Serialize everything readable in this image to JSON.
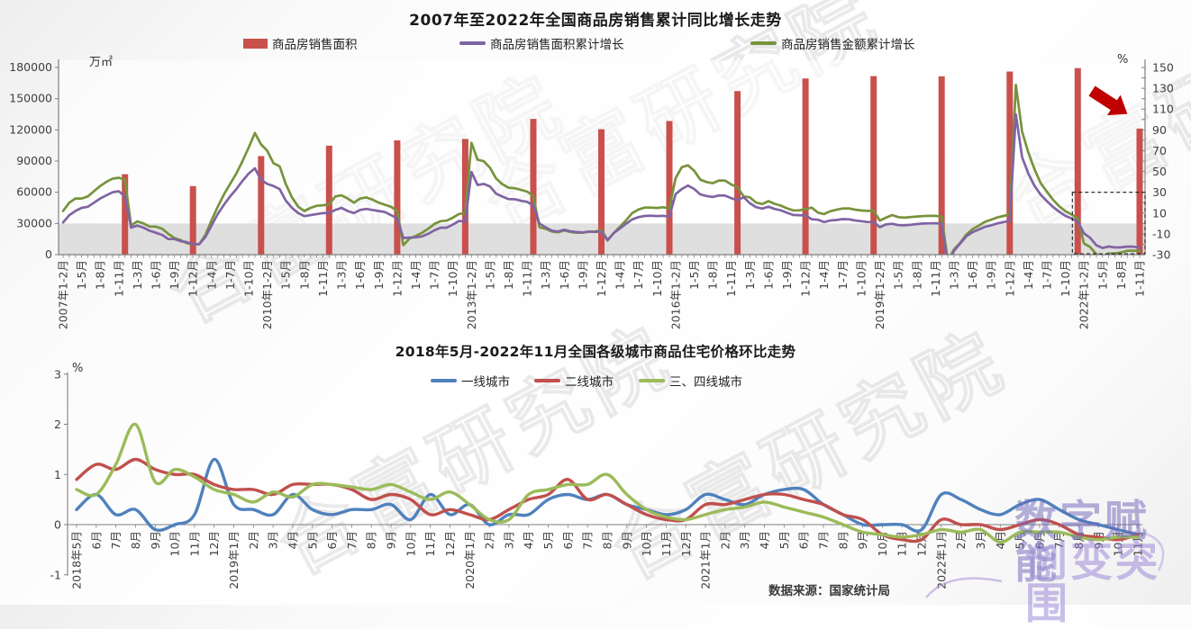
{
  "source_note": "数据来源：国家统计局",
  "watermarks": {
    "brand_line1": "数字赋能",
    "brand_line2": "创变突围",
    "diagonal": "合富研究院"
  },
  "chart_data": [
    {
      "type": "bar",
      "title": "2007年至2022年全国商品房销售累计同比增长走势",
      "left_axis": {
        "unit": "万㎡",
        "min": 0,
        "max": 180000,
        "labels": [
          "180000",
          "150000",
          "120000",
          "90000",
          "60000",
          "30000",
          "0"
        ]
      },
      "right_axis": {
        "unit": "%",
        "min": -30,
        "max": 150,
        "labels": [
          "150",
          "130",
          "110",
          "90",
          "70",
          "50",
          "30",
          "10",
          "-10",
          "-30"
        ]
      },
      "x_tick_labels": [
        "2007年1-2月",
        "1-5月",
        "1-8月",
        "1-11月",
        "1-3月",
        "1-6月",
        "1-9月",
        "1-12月",
        "1-4月",
        "1-7月",
        "1-10月",
        "2010年1-2月",
        "1-5月",
        "1-8月",
        "1-11月",
        "1-3月",
        "1-6月",
        "1-9月",
        "1-12月",
        "1-4月",
        "1-7月",
        "1-10月",
        "2013年1-2月",
        "1-5月",
        "1-8月",
        "1-11月",
        "1-3月",
        "1-6月",
        "1-9月",
        "1-12月",
        "1-4月",
        "1-7月",
        "1-10月",
        "2016年1-2月",
        "1-5月",
        "1-8月",
        "1-11月",
        "1-3月",
        "1-6月",
        "1-9月",
        "1-12月",
        "1-4月",
        "1-7月",
        "1-10月",
        "2019年1-2月",
        "1-5月",
        "1-8月",
        "1-11月",
        "1-3月",
        "1-6月",
        "1-9月",
        "1-12月",
        "1-4月",
        "1-7月",
        "1-10月",
        "2022年1-2月",
        "1-5月",
        "1-8月",
        "1-11月"
      ],
      "tick_label_every_points": 3,
      "total_points": 175,
      "annotations": {
        "shaded_band_percent": {
          "from": -30,
          "to": 0,
          "color": "#D9D9D9"
        },
        "dashed_box_percent": {
          "from": 30,
          "to": -30,
          "note_region": "2021年末至2022年"
        },
        "arrow_color": "#C00000"
      },
      "series": [
        {
          "name": "商品房销售面积",
          "type": "bar",
          "axis": "left",
          "color": "#C9504C",
          "points": [
            {
              "i": 10,
              "v": 77355
            },
            {
              "i": 21,
              "v": 65970
            },
            {
              "i": 32,
              "v": 94755
            },
            {
              "i": 43,
              "v": 104765
            },
            {
              "i": 54,
              "v": 109946
            },
            {
              "i": 65,
              "v": 111304
            },
            {
              "i": 76,
              "v": 130551
            },
            {
              "i": 87,
              "v": 120649
            },
            {
              "i": 98,
              "v": 128495
            },
            {
              "i": 109,
              "v": 157349
            },
            {
              "i": 120,
              "v": 169408
            },
            {
              "i": 131,
              "v": 171654
            },
            {
              "i": 142,
              "v": 171558
            },
            {
              "i": 153,
              "v": 176086
            },
            {
              "i": 164,
              "v": 179433
            },
            {
              "i": 174,
              "v": 121250
            }
          ]
        },
        {
          "name": "商品房销售面积累计增长",
          "type": "line",
          "axis": "right",
          "color": "#8064A2",
          "values": [
            1,
            8,
            12,
            15,
            16,
            20,
            24,
            27,
            30,
            31,
            26,
            -4,
            -2,
            -4,
            -7,
            -9,
            -11,
            -15,
            -15,
            -17,
            -18,
            -20,
            -20,
            -13,
            -2,
            9,
            18,
            26,
            33,
            41,
            48,
            53,
            42,
            38,
            36,
            33,
            22,
            15,
            10,
            7,
            8,
            9,
            10,
            10,
            13,
            15,
            12,
            10,
            13,
            14,
            13,
            12,
            11,
            8,
            5,
            -14,
            -13.6,
            -13.4,
            -12.4,
            -10,
            -6.6,
            -4.1,
            -4,
            -1.1,
            2.4,
            1.8,
            49.5,
            37.1,
            38,
            35.6,
            28.7,
            25.8,
            23.4,
            23.3,
            21.8,
            20.8,
            17.3,
            -0.1,
            -3.8,
            -6.9,
            -7.8,
            -6,
            -7.6,
            -8.3,
            -8.6,
            -7.8,
            -8.2,
            -7.6,
            -16.3,
            -9.2,
            -4.8,
            -0.2,
            3.9,
            6.1,
            7.2,
            7.5,
            7.1,
            7.4,
            6.5,
            28.2,
            33.1,
            36.5,
            33.2,
            27.9,
            26.4,
            25.5,
            26.9,
            26.8,
            24.3,
            22.5,
            25.1,
            19.5,
            15.7,
            14.3,
            16.1,
            14,
            12.7,
            10.3,
            8.2,
            7.9,
            7.7,
            4.1,
            3.6,
            1.3,
            2.9,
            3.3,
            4.2,
            4,
            2.9,
            2.2,
            1.4,
            1.3,
            -3.6,
            -0.9,
            -0.3,
            -1.6,
            -1.8,
            -1.3,
            -0.6,
            -0.1,
            0.1,
            0.2,
            -0.1,
            -39.9,
            -26.3,
            -19.3,
            -12.3,
            -8.4,
            -5.8,
            -3.3,
            -1.8,
            0,
            1.3,
            2.6,
            104.9,
            63.8,
            48.1,
            36.3,
            27.7,
            21.5,
            15.9,
            11.3,
            7.3,
            4.8,
            1.9,
            -9.6,
            -13.8,
            -20.9,
            -23.6,
            -22.2,
            -23.1,
            -23,
            -22.2,
            -22.3,
            -23.3
          ]
        },
        {
          "name": "商品房销售金额累计增长",
          "type": "line",
          "axis": "right",
          "color": "#77933C",
          "values": [
            12,
            20,
            24,
            24,
            26,
            31,
            36,
            40,
            43,
            44,
            42,
            -2,
            2,
            0,
            -3,
            -3,
            -5,
            -10,
            -14,
            -16,
            -19,
            -20,
            -20,
            -11,
            3,
            16,
            28,
            38,
            48,
            60,
            73,
            87,
            76,
            70,
            58,
            55,
            38,
            25,
            16,
            12,
            15,
            17,
            17.5,
            18.3,
            26,
            27,
            24,
            20,
            24,
            25,
            23,
            20,
            18,
            16,
            12,
            -20.9,
            -14.5,
            -11.9,
            -9.1,
            -5.2,
            -0.5,
            2.2,
            2.7,
            5.6,
            9.1,
            10,
            77.6,
            61.3,
            59.8,
            53.6,
            43.2,
            37.8,
            34.4,
            33.9,
            32.3,
            30.7,
            26.3,
            -3.7,
            -5.2,
            -7.8,
            -8.5,
            -6.7,
            -8.2,
            -8.9,
            -8.9,
            -7.9,
            -7.8,
            -6.3,
            -15.8,
            -9.3,
            -3.1,
            3.1,
            10,
            13.4,
            15.3,
            15.3,
            14.9,
            15.6,
            14.4,
            43.6,
            54.1,
            55.9,
            50.7,
            42.1,
            39.8,
            38.7,
            41.3,
            41.2,
            37.5,
            34.8,
            26,
            25.1,
            20.1,
            18.6,
            21.5,
            18.9,
            17.2,
            14.6,
            12.6,
            12.7,
            13.7,
            15.3,
            10.4,
            9,
            11.8,
            13.2,
            14.4,
            14.5,
            13.3,
            12.5,
            12.1,
            12.2,
            2.8,
            5.6,
            8.1,
            6.1,
            5.6,
            6.2,
            6.7,
            7.1,
            7.3,
            7.3,
            6.5,
            -35.9,
            -24.7,
            -18.6,
            -10.6,
            -5.4,
            -2.1,
            1.6,
            3.7,
            5.8,
            7.2,
            8.7,
            133.4,
            88.5,
            68.2,
            52.4,
            38.9,
            30.7,
            22.8,
            16.6,
            11.8,
            8.5,
            4.8,
            -19.3,
            -22.7,
            -29.5,
            -31.5,
            -28.9,
            -28.8,
            -27.9,
            -26.3,
            -26.1,
            -26.6
          ]
        }
      ]
    },
    {
      "type": "line",
      "title": "2018年5月-2022年11月全国各级城市商品住宅价格环比走势",
      "y_axis": {
        "unit": "%",
        "min": -1,
        "max": 3,
        "labels": [
          "3",
          "2",
          "1",
          "0",
          "-1"
        ]
      },
      "x_labels": [
        "2018年5月",
        "6月",
        "7月",
        "8月",
        "9月",
        "10月",
        "11月",
        "12月",
        "2019年1月",
        "2月",
        "3月",
        "4月",
        "5月",
        "6月",
        "7月",
        "8月",
        "9月",
        "10月",
        "11月",
        "12月",
        "2020年1月",
        "2月",
        "3月",
        "4月",
        "5月",
        "6月",
        "7月",
        "8月",
        "9月",
        "10月",
        "11月",
        "12月",
        "2021年1月",
        "2月",
        "3月",
        "4月",
        "5月",
        "6月",
        "7月",
        "8月",
        "9月",
        "10月",
        "11月",
        "12月",
        "2022年1月",
        "2月",
        "3月",
        "4月",
        "5月",
        "6月",
        "7月",
        "8月",
        "9月",
        "10月",
        "11月"
      ],
      "series": [
        {
          "name": "一线城市",
          "color": "#4F81BD",
          "values": [
            0.3,
            0.6,
            0.2,
            0.3,
            -0.1,
            0,
            0.2,
            1.3,
            0.4,
            0.3,
            0.2,
            0.6,
            0.3,
            0.2,
            0.3,
            0.3,
            0.4,
            0.1,
            0.6,
            0.2,
            0.4,
            0,
            0.2,
            0.2,
            0.5,
            0.6,
            0.5,
            0.6,
            0.4,
            0.3,
            0.2,
            0.3,
            0.6,
            0.5,
            0.4,
            0.6,
            0.7,
            0.7,
            0.4,
            0.2,
            0,
            0,
            0,
            -0.1,
            0.6,
            0.5,
            0.3,
            0.2,
            0.4,
            0.5,
            0.3,
            0.1,
            0,
            -0.1,
            -0.2
          ]
        },
        {
          "name": "二线城市",
          "color": "#C0504D",
          "values": [
            0.9,
            1.2,
            1.1,
            1.3,
            1.1,
            1,
            1,
            0.8,
            0.7,
            0.7,
            0.6,
            0.8,
            0.8,
            0.8,
            0.7,
            0.5,
            0.6,
            0.5,
            0.2,
            0.3,
            0.2,
            0.1,
            0.3,
            0.5,
            0.6,
            0.9,
            0.5,
            0.6,
            0.4,
            0.2,
            0.1,
            0.1,
            0.4,
            0.4,
            0.5,
            0.6,
            0.6,
            0.5,
            0.4,
            0.2,
            0.1,
            -0.2,
            -0.3,
            -0.3,
            0.1,
            0,
            0,
            -0.1,
            0,
            0.1,
            0,
            -0.2,
            -0.25,
            -0.3,
            -0.2
          ]
        },
        {
          "name": "三、四线城市",
          "color": "#9BBB59",
          "values": [
            0.7,
            0.6,
            1.2,
            2,
            0.85,
            1.1,
            0.95,
            0.7,
            0.6,
            0.45,
            0.65,
            0.55,
            0.8,
            0.8,
            0.75,
            0.7,
            0.8,
            0.65,
            0.5,
            0.65,
            0.4,
            0.1,
            0.1,
            0.6,
            0.7,
            0.8,
            0.8,
            1,
            0.6,
            0.3,
            0.15,
            0.1,
            0.2,
            0.3,
            0.35,
            0.45,
            0.35,
            0.25,
            0.15,
            0,
            -0.15,
            -0.2,
            -0.25,
            -0.2,
            -0.1,
            -0.15,
            -0.1,
            -0.35,
            -0.15,
            -0.15,
            -0.15,
            -0.25,
            -0.3,
            -0.25,
            -0.25
          ]
        }
      ]
    }
  ]
}
